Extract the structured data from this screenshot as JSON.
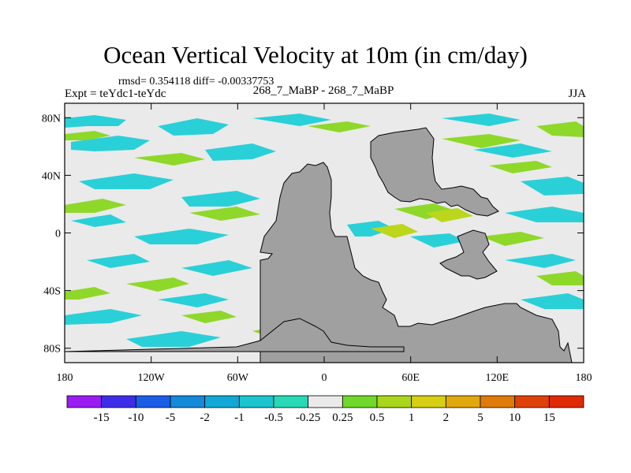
{
  "title": "Ocean Vertical Velocity at 10m (in cm/day)",
  "stats_text": "rmsd= 0.354118  diff= -0.00337753",
  "expt_text": "Expt = teYdc1-teYdc",
  "experiment_label": "268_7_MaBP - 268_7_MaBP",
  "season": "JJA",
  "chart_data": {
    "type": "heatmap",
    "title": "Ocean Vertical Velocity at 10m (in cm/day)",
    "variable": "ocean vertical velocity at 10m",
    "units": "cm/day",
    "x_axis": {
      "range": [
        -180,
        180
      ],
      "ticks": [
        -180,
        -120,
        -60,
        0,
        60,
        120,
        180
      ],
      "tick_labels": [
        "180",
        "120W",
        "60W",
        "0",
        "60E",
        "120E",
        "180"
      ]
    },
    "y_axis": {
      "range": [
        -90,
        90
      ],
      "ticks": [
        80,
        40,
        0,
        -40,
        -80
      ],
      "tick_labels": [
        "80N",
        "40N",
        "0",
        "40S",
        "80S"
      ]
    },
    "colorbar": {
      "levels": [
        "-15",
        "-10",
        "-5",
        "-2",
        "-1",
        "-0.5",
        "-0.25",
        "0.25",
        "0.5",
        "1",
        "2",
        "5",
        "10",
        "15"
      ],
      "colors": [
        "#9a1cf2",
        "#3d2de8",
        "#1a5ee6",
        "#1489d8",
        "#11a8d8",
        "#1cc4cf",
        "#27d9b5",
        "#eaeaea",
        "#6fd82a",
        "#a9d61c",
        "#d6cf14",
        "#e0a80c",
        "#e07a0a",
        "#e0400a",
        "#e02a06"
      ]
    },
    "land_color": "#a0a0a0",
    "background_color": "#eaeaea"
  }
}
